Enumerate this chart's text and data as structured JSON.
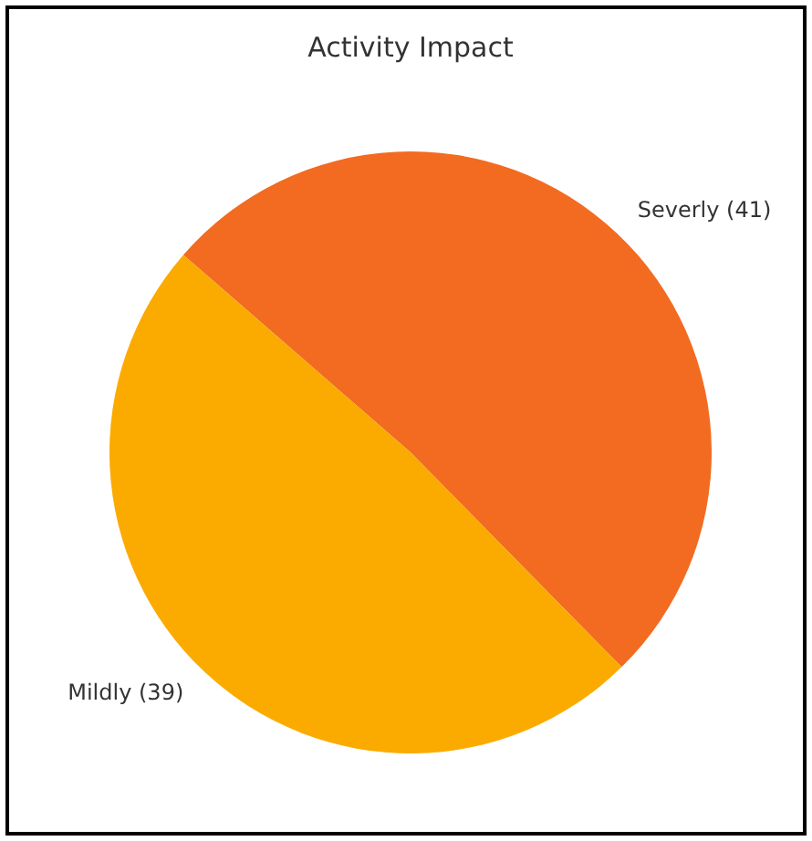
{
  "chart_data": {
    "type": "pie",
    "title": "Activity Impact",
    "categories": [
      "Severly (41)",
      "Mildly (39)"
    ],
    "values": [
      41,
      39
    ],
    "colors": [
      "#f26b21",
      "#fbab00"
    ],
    "legend": false
  }
}
